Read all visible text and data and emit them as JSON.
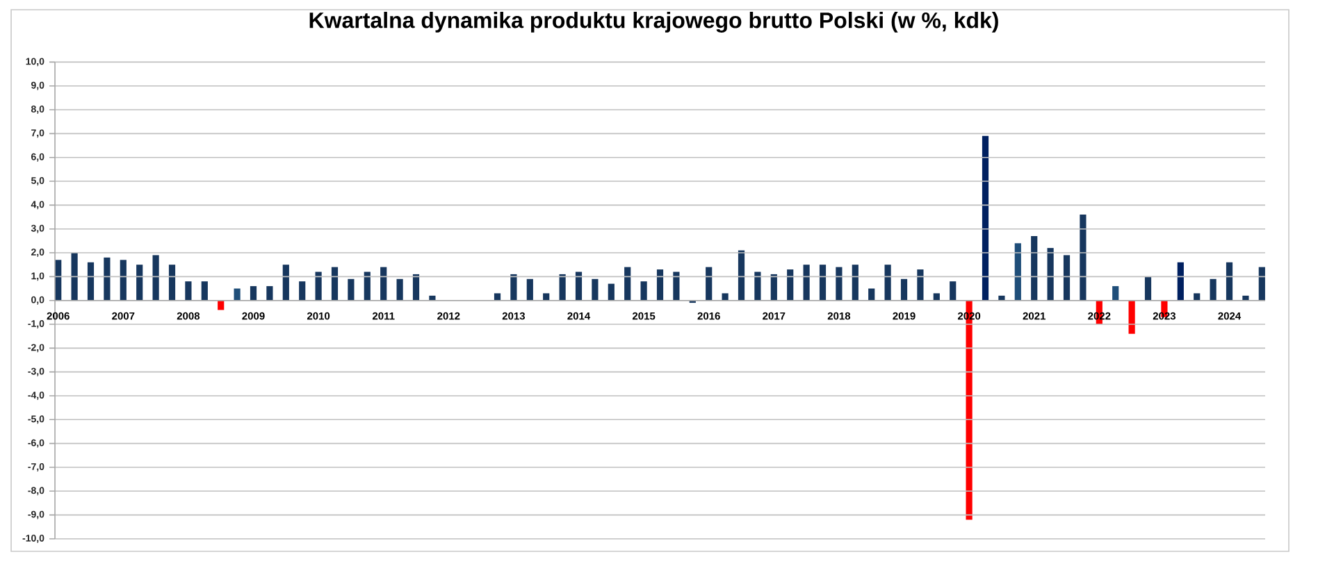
{
  "chart_data": {
    "type": "bar",
    "title": "Kwartalna dynamika produktu krajowego brutto Polski (w %, kdk)",
    "categories": [
      "2006",
      null,
      null,
      null,
      "2007",
      null,
      null,
      null,
      "2008",
      null,
      null,
      null,
      "2009",
      null,
      null,
      null,
      "2010",
      null,
      null,
      null,
      "2011",
      null,
      null,
      null,
      "2012",
      null,
      null,
      null,
      "2013",
      null,
      null,
      null,
      "2014",
      null,
      null,
      null,
      "2015",
      null,
      null,
      null,
      "2016",
      null,
      null,
      null,
      "2017",
      null,
      null,
      null,
      "2018",
      null,
      null,
      null,
      "2019",
      null,
      null,
      null,
      "2020",
      null,
      null,
      null,
      "2021",
      null,
      null,
      null,
      "2022",
      null,
      null,
      null,
      "2023",
      null,
      null,
      null,
      "2024",
      null,
      null
    ],
    "values": [
      1.7,
      2.0,
      1.6,
      1.8,
      1.7,
      1.5,
      1.9,
      1.5,
      0.8,
      0.8,
      -0.4,
      0.5,
      0.6,
      0.6,
      1.5,
      0.8,
      1.2,
      1.4,
      0.9,
      1.2,
      1.4,
      0.9,
      1.1,
      0.2,
      null,
      null,
      null,
      0.3,
      1.1,
      0.9,
      0.3,
      1.1,
      1.2,
      0.9,
      0.7,
      1.4,
      0.8,
      1.3,
      1.2,
      -0.1,
      1.4,
      0.3,
      2.1,
      1.2,
      1.1,
      1.3,
      1.5,
      1.5,
      1.4,
      1.5,
      0.5,
      1.5,
      0.9,
      1.3,
      0.3,
      0.8,
      -9.2,
      6.9,
      0.2,
      2.4,
      2.7,
      2.2,
      1.9,
      3.6,
      -1.0,
      0.6,
      -1.4,
      1.0,
      -0.7,
      1.6,
      0.3,
      0.9,
      1.6,
      0.2,
      1.4
    ],
    "colors": [
      "#17375e",
      "#17375e",
      "#17375e",
      "#17375e",
      "#17375e",
      "#17375e",
      "#17375e",
      "#17375e",
      "#17375e",
      "#17375e",
      "#ff0000",
      "#1f4e79",
      "#17375e",
      "#17375e",
      "#17375e",
      "#17375e",
      "#17375e",
      "#17375e",
      "#17375e",
      "#17375e",
      "#17375e",
      "#17375e",
      "#17375e",
      "#17375e",
      null,
      null,
      null,
      "#17375e",
      "#17375e",
      "#17375e",
      "#17375e",
      "#17375e",
      "#17375e",
      "#17375e",
      "#17375e",
      "#17375e",
      "#17375e",
      "#17375e",
      "#17375e",
      "#17375e",
      "#17375e",
      "#17375e",
      "#17375e",
      "#17375e",
      "#17375e",
      "#17375e",
      "#17375e",
      "#17375e",
      "#17375e",
      "#17375e",
      "#17375e",
      "#17375e",
      "#17375e",
      "#17375e",
      "#17375e",
      "#17375e",
      "#ff0000",
      "#002060",
      "#17375e",
      "#1f4e79",
      "#17375e",
      "#17375e",
      "#17375e",
      "#17375e",
      "#ff0000",
      "#1f4e79",
      "#ff0000",
      "#17375e",
      "#ff0000",
      "#002060",
      "#17375e",
      "#17375e",
      "#17375e",
      "#17375e",
      "#17375e"
    ],
    "ylim": [
      -10,
      10
    ],
    "yticks": [
      {
        "value": -10,
        "label": "-10,0"
      },
      {
        "value": -9,
        "label": "-9,0"
      },
      {
        "value": -8,
        "label": "-8,0"
      },
      {
        "value": -7,
        "label": "-7,0"
      },
      {
        "value": -6,
        "label": "-6,0"
      },
      {
        "value": -5,
        "label": "-5,0"
      },
      {
        "value": -4,
        "label": "-4,0"
      },
      {
        "value": -3,
        "label": "-3,0"
      },
      {
        "value": -2,
        "label": "-2,0"
      },
      {
        "value": -1,
        "label": "-1,0"
      },
      {
        "value": 0,
        "label": "0,0"
      },
      {
        "value": 1,
        "label": "1,0"
      },
      {
        "value": 2,
        "label": "2,0"
      },
      {
        "value": 3,
        "label": "3,0"
      },
      {
        "value": 4,
        "label": "4,0"
      },
      {
        "value": 5,
        "label": "5,0"
      },
      {
        "value": 6,
        "label": "6,0"
      },
      {
        "value": 7,
        "label": "7,0"
      },
      {
        "value": 8,
        "label": "8,0"
      },
      {
        "value": 9,
        "label": "9,0"
      },
      {
        "value": 10,
        "label": "10,0"
      }
    ],
    "grid": "y"
  }
}
